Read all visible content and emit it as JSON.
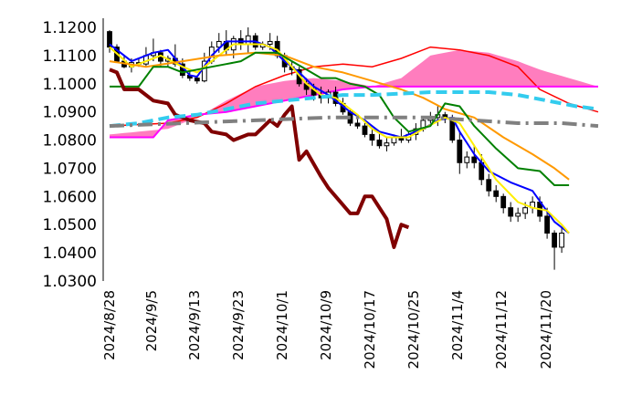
{
  "chart_data": {
    "type": "candlestick",
    "title": "",
    "xlabel": "",
    "ylabel": "",
    "ylim": [
      1.03,
      1.12
    ],
    "x_ticks": [
      "2024/8/28",
      "2024/9/5",
      "2024/9/13",
      "2024/9/23",
      "2024/10/1",
      "2024/10/9",
      "2024/10/17",
      "2024/10/25",
      "2024/11/4",
      "2024/11/12",
      "2024/11/20"
    ],
    "y_ticks": [
      "1.1200",
      "1.1100",
      "1.1000",
      "1.0900",
      "1.0800",
      "1.0700",
      "1.0600",
      "1.0500",
      "1.0400",
      "1.0300"
    ],
    "grid": false,
    "legend": "none",
    "colors": {
      "candle": "#000000",
      "ma_blue": "#0000ff",
      "ma_yellow": "#ffee00",
      "ma_orange": "#ff9900",
      "ma_green": "#008000",
      "lagging_line": "#800000",
      "cloud_upper": "#ff0000",
      "cloud_lower": "#ff00ff",
      "cloud_fill": "#ff66b3",
      "dashed_cyan": "#33ccee",
      "dashdot_gray": "#808080"
    },
    "candles": [
      [
        1.1185,
        1.119,
        1.111,
        1.113
      ],
      [
        1.113,
        1.114,
        1.1075,
        1.108
      ],
      [
        1.108,
        1.11,
        1.1055,
        1.106
      ],
      [
        1.106,
        1.109,
        1.104,
        1.1075
      ],
      [
        1.1075,
        1.109,
        1.106,
        1.107
      ],
      [
        1.107,
        1.113,
        1.106,
        1.11
      ],
      [
        1.11,
        1.116,
        1.108,
        1.111
      ],
      [
        1.111,
        1.112,
        1.106,
        1.108
      ],
      [
        1.108,
        1.11,
        1.106,
        1.109
      ],
      [
        1.109,
        1.114,
        1.106,
        1.107
      ],
      [
        1.107,
        1.109,
        1.102,
        1.103
      ],
      [
        1.103,
        1.105,
        1.101,
        1.102
      ],
      [
        1.102,
        1.103,
        1.1,
        1.101
      ],
      [
        1.101,
        1.111,
        1.1005,
        1.108
      ],
      [
        1.108,
        1.115,
        1.107,
        1.113
      ],
      [
        1.113,
        1.118,
        1.111,
        1.115
      ],
      [
        1.115,
        1.119,
        1.11,
        1.112
      ],
      [
        1.112,
        1.117,
        1.109,
        1.116
      ],
      [
        1.116,
        1.119,
        1.112,
        1.114
      ],
      [
        1.114,
        1.12,
        1.111,
        1.117
      ],
      [
        1.117,
        1.118,
        1.112,
        1.113
      ],
      [
        1.113,
        1.115,
        1.112,
        1.114
      ],
      [
        1.114,
        1.118,
        1.112,
        1.115
      ],
      [
        1.115,
        1.117,
        1.109,
        1.11
      ],
      [
        1.11,
        1.111,
        1.104,
        1.106
      ],
      [
        1.106,
        1.108,
        1.103,
        1.105
      ],
      [
        1.105,
        1.106,
        1.099,
        1.1
      ],
      [
        1.1,
        1.102,
        1.096,
        1.098
      ],
      [
        1.098,
        1.1,
        1.094,
        1.096
      ],
      [
        1.096,
        1.099,
        1.093,
        1.095
      ],
      [
        1.095,
        1.098,
        1.093,
        1.097
      ],
      [
        1.097,
        1.099,
        1.092,
        1.093
      ],
      [
        1.093,
        1.095,
        1.089,
        1.09
      ],
      [
        1.09,
        1.091,
        1.085,
        1.086
      ],
      [
        1.086,
        1.089,
        1.084,
        1.085
      ],
      [
        1.085,
        1.086,
        1.081,
        1.082
      ],
      [
        1.082,
        1.084,
        1.078,
        1.08
      ],
      [
        1.08,
        1.083,
        1.077,
        1.078
      ],
      [
        1.078,
        1.081,
        1.076,
        1.079
      ],
      [
        1.079,
        1.082,
        1.078,
        1.081
      ],
      [
        1.081,
        1.084,
        1.079,
        1.08
      ],
      [
        1.08,
        1.083,
        1.079,
        1.082
      ],
      [
        1.082,
        1.086,
        1.08,
        1.084
      ],
      [
        1.084,
        1.088,
        1.083,
        1.087
      ],
      [
        1.087,
        1.09,
        1.086,
        1.088
      ],
      [
        1.088,
        1.092,
        1.085,
        1.089
      ],
      [
        1.089,
        1.09,
        1.086,
        1.088
      ],
      [
        1.088,
        1.089,
        1.079,
        1.08
      ],
      [
        1.08,
        1.083,
        1.068,
        1.072
      ],
      [
        1.072,
        1.076,
        1.07,
        1.074
      ],
      [
        1.074,
        1.078,
        1.07,
        1.072
      ],
      [
        1.072,
        1.075,
        1.064,
        1.066
      ],
      [
        1.066,
        1.068,
        1.06,
        1.062
      ],
      [
        1.062,
        1.064,
        1.058,
        1.06
      ],
      [
        1.06,
        1.061,
        1.054,
        1.056
      ],
      [
        1.056,
        1.058,
        1.051,
        1.053
      ],
      [
        1.053,
        1.056,
        1.051,
        1.054
      ],
      [
        1.054,
        1.058,
        1.052,
        1.056
      ],
      [
        1.056,
        1.06,
        1.054,
        1.058
      ],
      [
        1.058,
        1.06,
        1.051,
        1.053
      ],
      [
        1.053,
        1.056,
        1.045,
        1.047
      ],
      [
        1.047,
        1.048,
        1.034,
        1.042
      ],
      [
        1.042,
        1.049,
        1.04,
        1.047
      ]
    ],
    "series": [
      {
        "color": "#0000ff",
        "values": [
          [
            0,
            1.114
          ],
          [
            3,
            1.108
          ],
          [
            6,
            1.111
          ],
          [
            8,
            1.112
          ],
          [
            11,
            1.103
          ],
          [
            12,
            1.1025
          ],
          [
            14,
            1.11
          ],
          [
            16,
            1.115
          ],
          [
            18,
            1.115
          ],
          [
            20,
            1.115
          ],
          [
            22,
            1.113
          ],
          [
            24,
            1.108
          ],
          [
            26,
            1.104
          ],
          [
            28,
            1.099
          ],
          [
            30,
            1.096
          ],
          [
            33,
            1.09
          ],
          [
            35,
            1.087
          ],
          [
            37,
            1.083
          ],
          [
            40,
            1.081
          ],
          [
            43,
            1.084
          ],
          [
            45,
            1.087
          ],
          [
            47,
            1.088
          ],
          [
            48,
            1.083
          ],
          [
            50,
            1.075
          ],
          [
            52,
            1.069
          ],
          [
            55,
            1.065
          ],
          [
            58,
            1.062
          ],
          [
            61,
            1.051
          ],
          [
            63,
            1.047
          ]
        ]
      },
      {
        "color": "#ffee00",
        "values": [
          [
            0,
            1.113
          ],
          [
            3,
            1.106
          ],
          [
            5,
            1.108
          ],
          [
            7,
            1.11
          ],
          [
            10,
            1.106
          ],
          [
            12,
            1.104
          ],
          [
            14,
            1.108
          ],
          [
            17,
            1.114
          ],
          [
            19,
            1.114
          ],
          [
            21,
            1.114
          ],
          [
            23,
            1.112
          ],
          [
            25,
            1.106
          ],
          [
            27,
            1.1
          ],
          [
            29,
            1.096
          ],
          [
            31,
            1.095
          ],
          [
            34,
            1.089
          ],
          [
            36,
            1.084
          ],
          [
            38,
            1.081
          ],
          [
            41,
            1.081
          ],
          [
            43,
            1.084
          ],
          [
            46,
            1.088
          ],
          [
            48,
            1.086
          ],
          [
            50,
            1.078
          ],
          [
            53,
            1.066
          ],
          [
            56,
            1.058
          ],
          [
            58,
            1.056
          ],
          [
            60,
            1.055
          ],
          [
            62,
            1.05
          ],
          [
            63,
            1.047
          ]
        ]
      },
      {
        "color": "#ff9900",
        "values": [
          [
            0,
            1.108
          ],
          [
            5,
            1.106
          ],
          [
            10,
            1.108
          ],
          [
            15,
            1.11
          ],
          [
            20,
            1.111
          ],
          [
            24,
            1.11
          ],
          [
            28,
            1.106
          ],
          [
            32,
            1.104
          ],
          [
            36,
            1.101
          ],
          [
            40,
            1.098
          ],
          [
            43,
            1.095
          ],
          [
            46,
            1.091
          ],
          [
            50,
            1.088
          ],
          [
            54,
            1.081
          ],
          [
            58,
            1.075
          ],
          [
            61,
            1.07
          ],
          [
            63,
            1.066
          ]
        ]
      },
      {
        "color": "#008000",
        "values": [
          [
            0,
            1.099
          ],
          [
            4,
            1.099
          ],
          [
            6,
            1.106
          ],
          [
            8,
            1.106
          ],
          [
            10,
            1.104
          ],
          [
            12,
            1.105
          ],
          [
            14,
            1.106
          ],
          [
            16,
            1.107
          ],
          [
            18,
            1.108
          ],
          [
            20,
            1.111
          ],
          [
            23,
            1.111
          ],
          [
            25,
            1.108
          ],
          [
            27,
            1.105
          ],
          [
            29,
            1.102
          ],
          [
            31,
            1.102
          ],
          [
            33,
            1.1
          ],
          [
            35,
            1.099
          ],
          [
            37,
            1.096
          ],
          [
            39,
            1.088
          ],
          [
            41,
            1.083
          ],
          [
            44,
            1.085
          ],
          [
            46,
            1.093
          ],
          [
            48,
            1.092
          ],
          [
            50,
            1.085
          ],
          [
            53,
            1.077
          ],
          [
            56,
            1.07
          ],
          [
            59,
            1.069
          ],
          [
            61,
            1.064
          ],
          [
            63,
            1.064
          ]
        ]
      },
      {
        "color": "#800000",
        "values": [
          [
            0,
            1.105
          ],
          [
            1,
            1.104
          ],
          [
            2,
            1.098
          ],
          [
            4,
            1.098
          ],
          [
            6,
            1.094
          ],
          [
            8,
            1.093
          ],
          [
            9,
            1.089
          ],
          [
            11,
            1.087
          ],
          [
            13,
            1.086
          ],
          [
            14,
            1.083
          ],
          [
            16,
            1.082
          ],
          [
            17,
            1.08
          ],
          [
            19,
            1.082
          ],
          [
            20,
            1.082
          ],
          [
            22,
            1.087
          ],
          [
            23,
            1.085
          ],
          [
            24,
            1.089
          ],
          [
            25,
            1.092
          ],
          [
            26,
            1.073
          ],
          [
            27,
            1.076
          ],
          [
            29,
            1.067
          ],
          [
            30,
            1.063
          ],
          [
            32,
            1.057
          ],
          [
            33,
            1.054
          ],
          [
            34,
            1.054
          ],
          [
            35,
            1.06
          ],
          [
            36,
            1.06
          ],
          [
            38,
            1.052
          ],
          [
            39,
            1.042
          ],
          [
            40,
            1.05
          ],
          [
            41,
            1.049
          ]
        ]
      },
      {
        "color": "#33ccee",
        "dash": "dashed",
        "values": [
          [
            0,
            1.085
          ],
          [
            4,
            1.086
          ],
          [
            8,
            1.088
          ],
          [
            12,
            1.089
          ],
          [
            16,
            1.091
          ],
          [
            20,
            1.093
          ],
          [
            24,
            1.094
          ],
          [
            28,
            1.095
          ],
          [
            32,
            1.096
          ],
          [
            36,
            1.096
          ],
          [
            40,
            1.0965
          ],
          [
            44,
            1.097
          ],
          [
            48,
            1.097
          ],
          [
            52,
            1.097
          ],
          [
            56,
            1.096
          ],
          [
            60,
            1.094
          ],
          [
            64,
            1.092
          ],
          [
            67,
            1.091
          ]
        ]
      },
      {
        "color": "#808080",
        "dash": "dashdot",
        "values": [
          [
            0,
            1.085
          ],
          [
            10,
            1.086
          ],
          [
            20,
            1.087
          ],
          [
            30,
            1.088
          ],
          [
            38,
            1.088
          ],
          [
            44,
            1.088
          ],
          [
            50,
            1.087
          ],
          [
            56,
            1.086
          ],
          [
            62,
            1.086
          ],
          [
            67,
            1.085
          ]
        ]
      }
    ],
    "cloud": {
      "span_a": [
        [
          0,
          1.082
        ],
        [
          8,
          1.084
        ],
        [
          12,
          1.088
        ],
        [
          16,
          1.094
        ],
        [
          20,
          1.099
        ],
        [
          24,
          1.101
        ],
        [
          28,
          1.102
        ],
        [
          32,
          1.101
        ],
        [
          36,
          1.099
        ],
        [
          40,
          1.102
        ],
        [
          44,
          1.11
        ],
        [
          48,
          1.112
        ],
        [
          52,
          1.111
        ],
        [
          56,
          1.108
        ],
        [
          59,
          1.105
        ],
        [
          63,
          1.102
        ],
        [
          67,
          1.099
        ]
      ],
      "span_b": [
        [
          0,
          1.081
        ],
        [
          6,
          1.081
        ],
        [
          8,
          1.087
        ],
        [
          12,
          1.089
        ],
        [
          16,
          1.09
        ],
        [
          20,
          1.092
        ],
        [
          24,
          1.094
        ],
        [
          28,
          1.096
        ],
        [
          32,
          1.098
        ],
        [
          36,
          1.099
        ],
        [
          40,
          1.099
        ],
        [
          44,
          1.099
        ],
        [
          48,
          1.099
        ],
        [
          52,
          1.099
        ],
        [
          56,
          1.099
        ],
        [
          59,
          1.099
        ],
        [
          63,
          1.099
        ],
        [
          67,
          1.099
        ]
      ],
      "upper_red": [
        [
          0,
          1.085
        ],
        [
          8,
          1.086
        ],
        [
          12,
          1.088
        ],
        [
          16,
          1.093
        ],
        [
          20,
          1.099
        ],
        [
          24,
          1.103
        ],
        [
          28,
          1.106
        ],
        [
          32,
          1.107
        ],
        [
          36,
          1.106
        ],
        [
          40,
          1.109
        ],
        [
          44,
          1.113
        ],
        [
          48,
          1.112
        ],
        [
          52,
          1.11
        ],
        [
          56,
          1.106
        ],
        [
          59,
          1.098
        ],
        [
          63,
          1.093
        ],
        [
          67,
          1.09
        ]
      ]
    }
  }
}
